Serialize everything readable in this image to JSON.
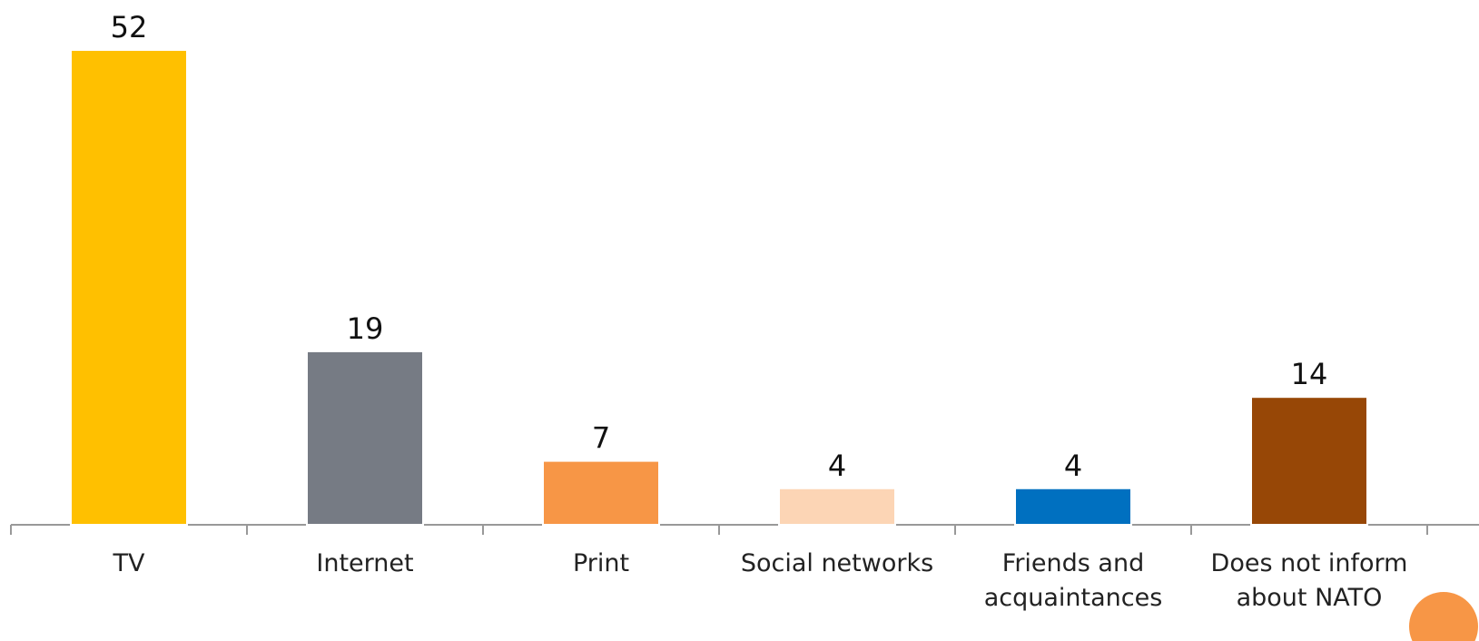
{
  "chart_data": {
    "type": "bar",
    "categories": [
      "TV",
      "Internet",
      "Print",
      "Social networks",
      "Friends and acquaintances",
      "Does not inform about NATO"
    ],
    "values": [
      52,
      19,
      7,
      4,
      4,
      14
    ],
    "colors": [
      "#ffc000",
      "#767b84",
      "#f79646",
      "#fcd5b5",
      "#0070c0",
      "#974706"
    ]
  }
}
